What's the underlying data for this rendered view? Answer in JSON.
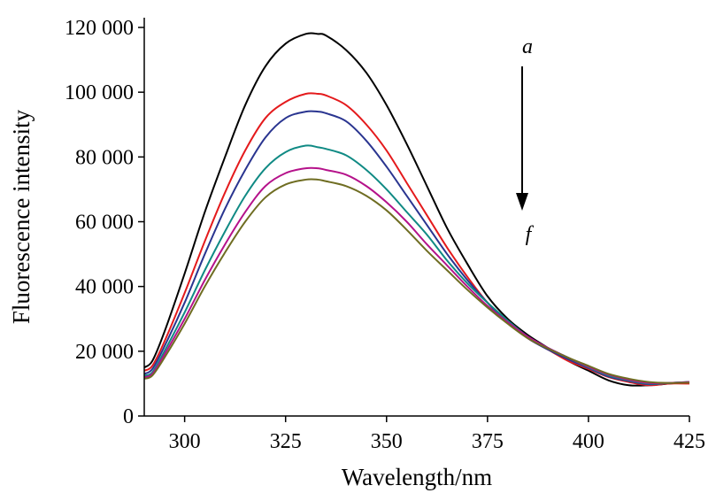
{
  "chart_data": {
    "type": "line",
    "title": "",
    "xlabel": "Wavelength/nm",
    "ylabel": "Fluorescence intensity",
    "xlim": [
      290,
      425
    ],
    "ylim": [
      0,
      120000
    ],
    "x_ticks": [
      300,
      325,
      350,
      375,
      400,
      425
    ],
    "y_ticks": [
      0,
      20000,
      40000,
      60000,
      80000,
      100000,
      120000
    ],
    "x_tick_labels": [
      "300",
      "325",
      "350",
      "375",
      "400",
      "425"
    ],
    "y_tick_labels": [
      "0",
      "20 000",
      "40 000",
      "60 000",
      "80 000",
      "100 000",
      "120 000"
    ],
    "grid": false,
    "legend": "none",
    "annotations": [
      {
        "text": "a",
        "role": "arrow-start"
      },
      {
        "text": "f",
        "role": "arrow-end"
      }
    ],
    "x": [
      290,
      292,
      295,
      300,
      305,
      310,
      315,
      320,
      325,
      330,
      333,
      335,
      340,
      345,
      350,
      355,
      360,
      365,
      370,
      375,
      380,
      385,
      390,
      395,
      400,
      405,
      410,
      415,
      420,
      425
    ],
    "series": [
      {
        "color": "#000000",
        "values": [
          15000,
          17000,
          26000,
          44000,
          63000,
          80000,
          96000,
          108000,
          115000,
          118000,
          118000,
          117500,
          113000,
          106000,
          96000,
          84000,
          71000,
          58000,
          47000,
          37000,
          30000,
          25000,
          21000,
          17000,
          14000,
          11000,
          9500,
          9500,
          10000,
          10500
        ]
      },
      {
        "color": "#e41a1c",
        "values": [
          14000,
          15500,
          23000,
          38000,
          54000,
          69000,
          82000,
          92000,
          97000,
          99500,
          99500,
          99000,
          96000,
          90000,
          82000,
          72000,
          62000,
          52000,
          43000,
          35000,
          29000,
          24000,
          20500,
          17000,
          14500,
          12000,
          10500,
          9500,
          10000,
          10000
        ]
      },
      {
        "color": "#2a3590",
        "values": [
          13000,
          14500,
          21500,
          35000,
          50000,
          64000,
          76000,
          86000,
          92000,
          94000,
          94000,
          93500,
          91000,
          85000,
          77000,
          68000,
          59000,
          50000,
          42000,
          35000,
          29000,
          24000,
          20500,
          17500,
          14800,
          12200,
          10800,
          9800,
          10200,
          10500
        ]
      },
      {
        "color": "#108a84",
        "values": [
          12500,
          13500,
          20000,
          32000,
          45000,
          57000,
          68000,
          76500,
          81500,
          83500,
          83000,
          82500,
          80500,
          76000,
          70000,
          63000,
          56000,
          48000,
          41000,
          35000,
          29500,
          24500,
          21000,
          18000,
          15000,
          12500,
          11000,
          10000,
          10200,
          10500
        ]
      },
      {
        "color": "#b5128a",
        "values": [
          12000,
          13000,
          19000,
          30000,
          42000,
          53000,
          63000,
          71000,
          75000,
          76500,
          76500,
          76000,
          74500,
          71000,
          66000,
          60000,
          53000,
          46500,
          40000,
          34000,
          29000,
          24500,
          21000,
          18000,
          15200,
          12800,
          11200,
          10200,
          10200,
          10500
        ]
      },
      {
        "color": "#6f6d22",
        "values": [
          11500,
          12500,
          18000,
          28500,
          40000,
          50500,
          60000,
          67500,
          71500,
          73000,
          73000,
          72500,
          71000,
          68000,
          63500,
          57500,
          51000,
          45000,
          39000,
          33500,
          28500,
          24000,
          20800,
          18000,
          15500,
          13000,
          11500,
          10500,
          10200,
          10300
        ]
      }
    ]
  }
}
